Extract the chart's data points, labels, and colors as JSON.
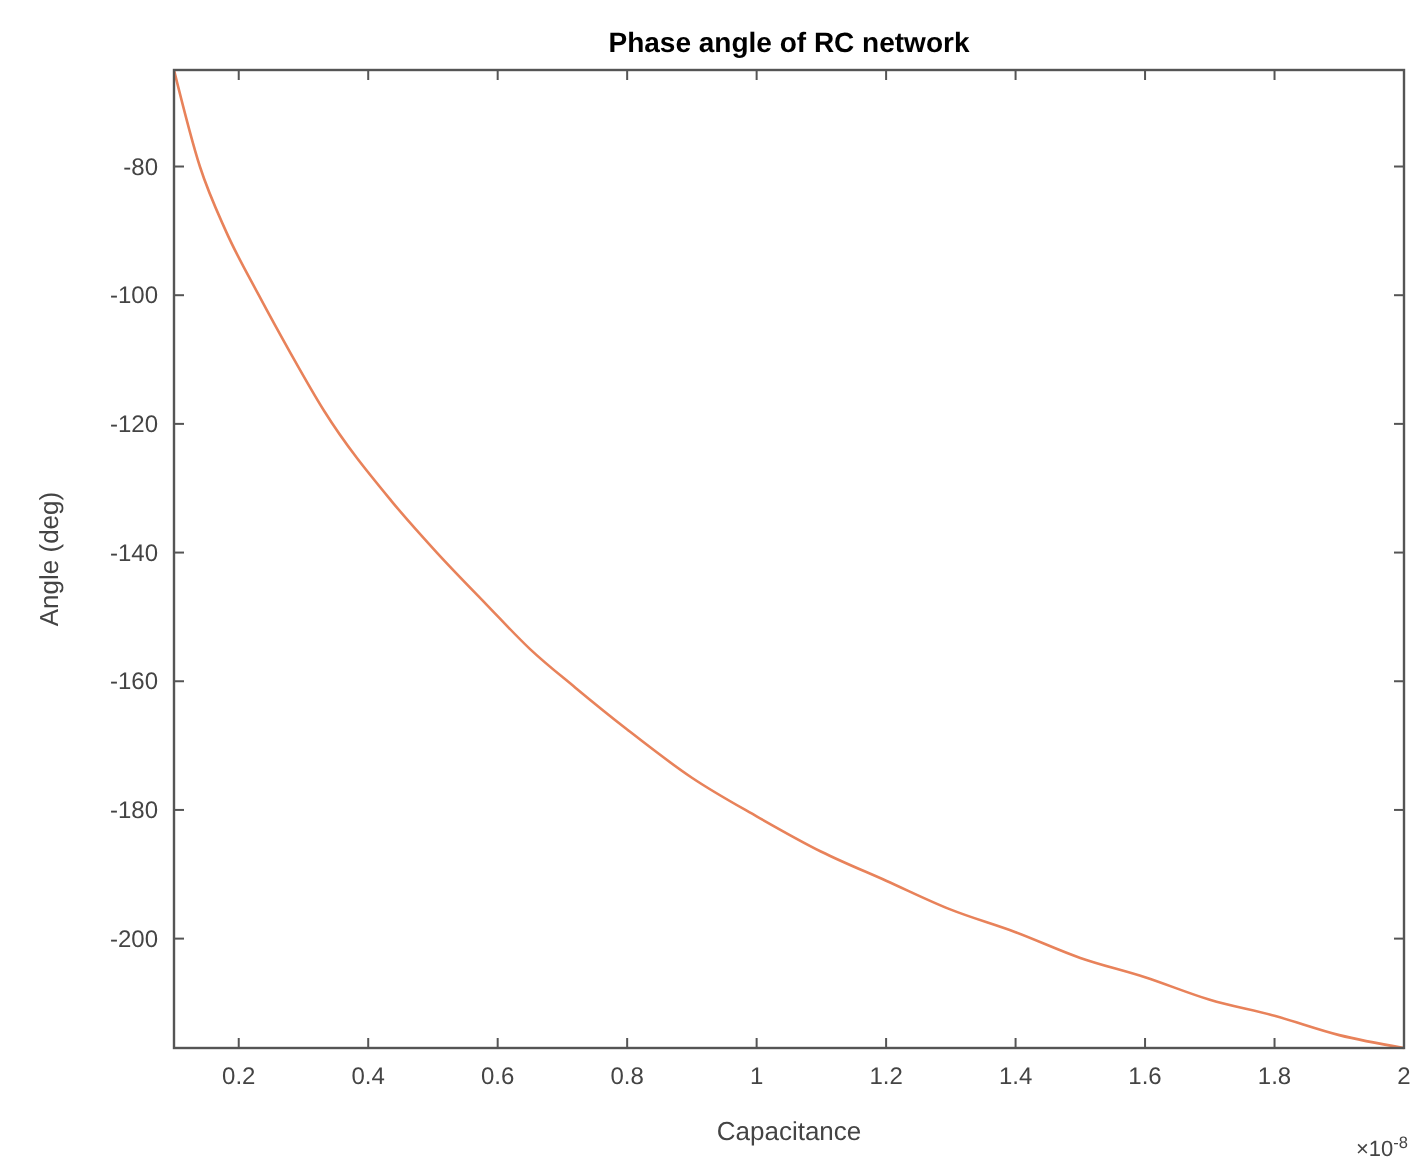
{
  "chart_data": {
    "type": "line",
    "title": "Phase angle of RC network",
    "xlabel": "Capacitance",
    "ylabel": "Angle (deg)",
    "annotations": [
      "×10$^{-8}$"
    ],
    "series": [
      {
        "color": "#e8825a",
        "x": [
          0.1,
          0.14,
          0.18,
          0.231,
          0.28,
          0.332,
          0.436,
          0.506,
          0.582,
          0.65,
          0.72,
          0.8,
          0.9,
          1.0,
          1.1,
          1.2,
          1.3,
          1.4,
          1.5,
          1.6,
          1.7,
          1.8,
          1.9,
          2.0
        ],
        "values": [
          -65,
          -80,
          -90,
          -100,
          -109,
          -118,
          -132,
          -140,
          -148,
          -155,
          -161,
          -167.5,
          -175,
          -181,
          -186.5,
          -191,
          -195.5,
          -199,
          -203,
          -206,
          -209.5,
          -212,
          -215,
          -217
        ]
      }
    ],
    "xlim": [
      0.1,
      2
    ],
    "ylim": [
      -217,
      -65
    ],
    "xticks": [
      0.2,
      0.4,
      0.6,
      0.8,
      1,
      1.2,
      1.4,
      1.6,
      1.8,
      2
    ],
    "yticks": [
      -80,
      -100,
      -120,
      -140,
      -160,
      -180,
      -200
    ],
    "marker": "none",
    "line_style": "solid"
  }
}
